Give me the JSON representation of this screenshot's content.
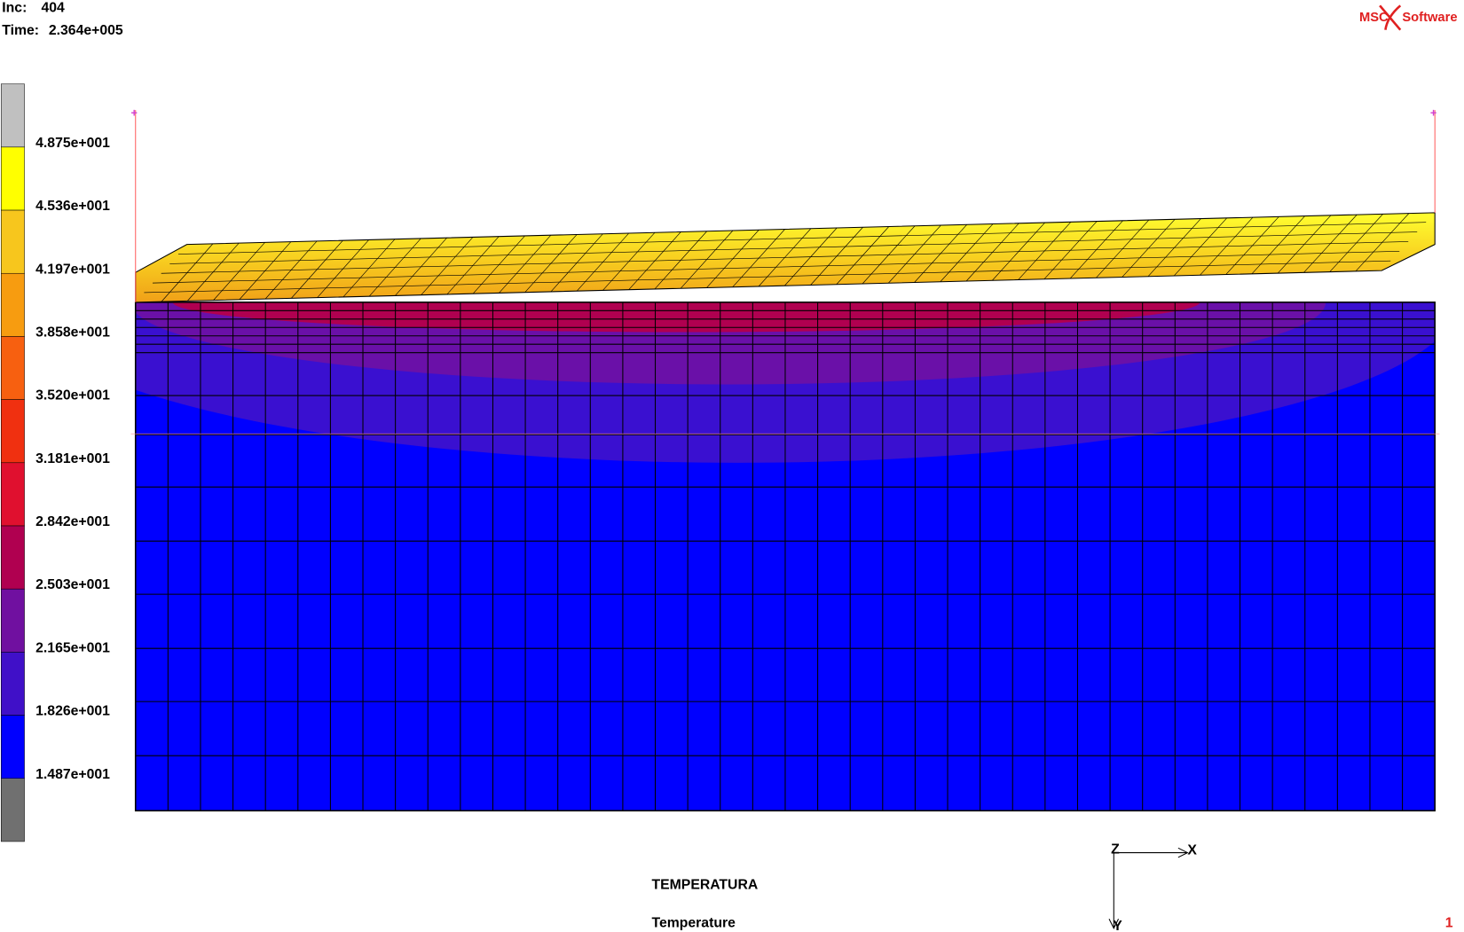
{
  "header": {
    "inc_label": "Inc:",
    "inc": 404,
    "time_label": "Time:",
    "time": "2.364e+005"
  },
  "logo": {
    "left": "MSC",
    "right": "Software"
  },
  "legend": {
    "labels": [
      "4.875e+001",
      "4.536e+001",
      "4.197e+001",
      "3.858e+001",
      "3.520e+001",
      "3.181e+001",
      "2.842e+001",
      "2.503e+001",
      "2.165e+001",
      "1.826e+001",
      "1.487e+001"
    ]
  },
  "footer": {
    "title": "TEMPERATURA",
    "subtitle": "Temperature",
    "window": "1"
  },
  "triad": {
    "x": "X",
    "y": "Y",
    "z": "Z"
  }
}
